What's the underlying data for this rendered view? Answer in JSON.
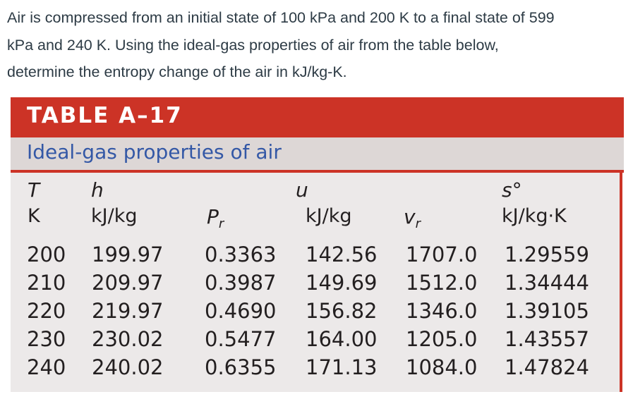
{
  "question": {
    "line1": "Air is compressed from an initial state of 100 kPa and 200 K to a final state of 599",
    "line2": "kPa and 240 K.  Using the ideal-gas properties of air from the table below,",
    "line3": "determine the entropy change of the air in kJ/kg-K."
  },
  "table": {
    "title": "TABLE A–17",
    "subtitle": "Ideal-gas properties of air",
    "headers": {
      "T": "T",
      "T_unit": "K",
      "h": "h",
      "h_unit": "kJ/kg",
      "Pr": "P",
      "Pr_sub": "r",
      "u": "u",
      "u_unit": "kJ/kg",
      "vr": "v",
      "vr_sub": "r",
      "s": "s°",
      "s_unit": "kJ/kg·K"
    },
    "rows": [
      {
        "T": "200",
        "h": "199.97",
        "Pr": "0.3363",
        "u": "142.56",
        "vr": "1707.0",
        "s": "1.29559"
      },
      {
        "T": "210",
        "h": "209.97",
        "Pr": "0.3987",
        "u": "149.69",
        "vr": "1512.0",
        "s": "1.34444"
      },
      {
        "T": "220",
        "h": "219.97",
        "Pr": "0.4690",
        "u": "156.82",
        "vr": "1346.0",
        "s": "1.39105"
      },
      {
        "T": "230",
        "h": "230.02",
        "Pr": "0.5477",
        "u": "164.00",
        "vr": "1205.0",
        "s": "1.43557"
      },
      {
        "T": "240",
        "h": "240.02",
        "Pr": "0.6355",
        "u": "171.13",
        "vr": "1084.0",
        "s": "1.47824"
      }
    ]
  }
}
